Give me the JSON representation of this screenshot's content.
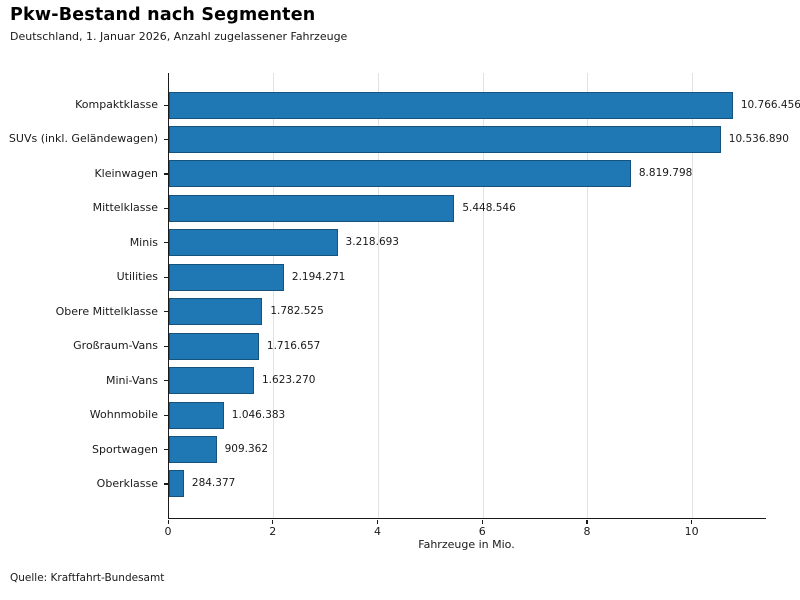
{
  "page": {
    "background_color": "#ffffff"
  },
  "chart_data": {
    "type": "bar",
    "orientation": "horizontal",
    "title": "Pkw-Bestand nach Segmenten",
    "subtitle": "Deutschland, 1. Januar 2026, Anzahl zugelassener Fahrzeuge",
    "xlabel": "Fahrzeuge in Mio.",
    "source": "Quelle: Kraftfahrt-Bundesamt",
    "categories": [
      "Kompaktklasse",
      "SUVs (inkl. Geländewagen)",
      "Kleinwagen",
      "Mittelklasse",
      "Minis",
      "Utilities",
      "Obere Mittelklasse",
      "Großraum-Vans",
      "Mini-Vans",
      "Wohnmobile",
      "Sportwagen",
      "Oberklasse"
    ],
    "values": [
      10766456,
      10536890,
      8819798,
      5448546,
      3218693,
      2194271,
      1782525,
      1716657,
      1623270,
      1046383,
      909362,
      284377
    ],
    "value_labels": [
      "10.766.456",
      "10.536.890",
      "8.819.798",
      "5.448.546",
      "3.218.693",
      "2.194.271",
      "1.782.525",
      "1.716.657",
      "1.623.270",
      "1.046.383",
      "909.362",
      "284.377"
    ],
    "unit_divisor": 1000000,
    "xlim": [
      0,
      11.4
    ],
    "xticks": [
      0,
      2,
      4,
      6,
      8,
      10
    ],
    "grid": "vertical-gridlines-only",
    "legend": "none",
    "bar_color": "#1f77b4",
    "bar_edge_color": "#15527e",
    "grid_color": "#e2e2e2",
    "axis_color": "#1a1a1a"
  }
}
